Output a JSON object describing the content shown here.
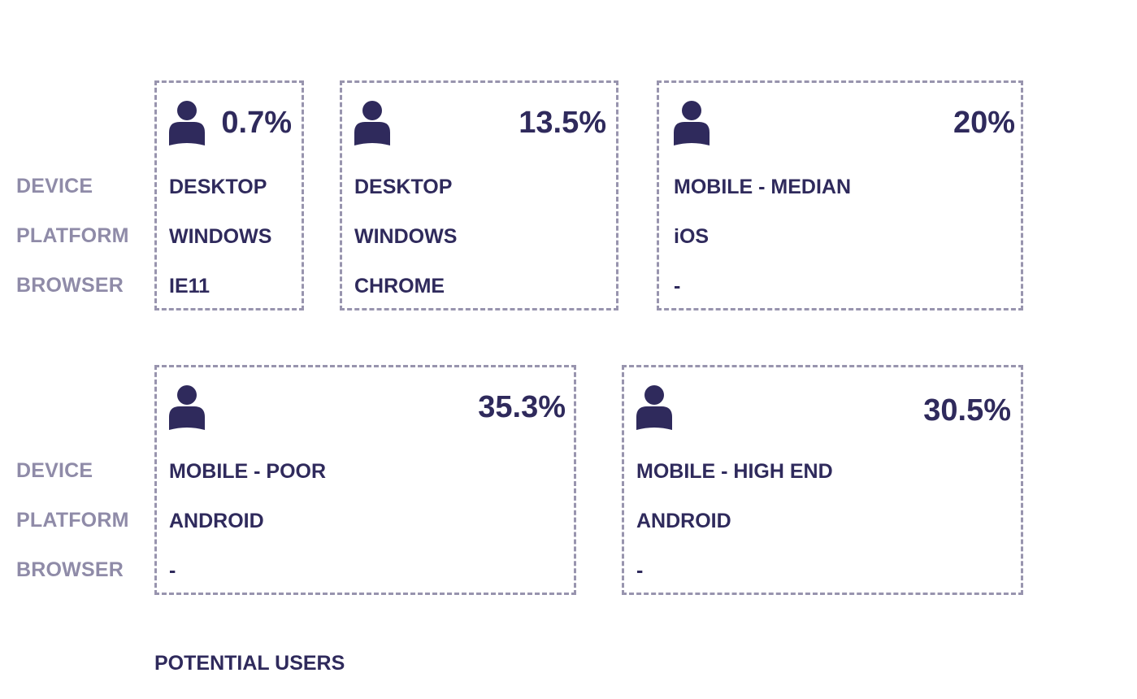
{
  "row_labels": {
    "device": "DEVICE",
    "platform": "PLATFORM",
    "browser": "BROWSER"
  },
  "segments": [
    {
      "percent": "0.7%",
      "device": "DESKTOP",
      "platform": "WINDOWS",
      "browser": "IE11"
    },
    {
      "percent": "13.5%",
      "device": "DESKTOP",
      "platform": "WINDOWS",
      "browser": "CHROME"
    },
    {
      "percent": "20%",
      "device": "MOBILE - MEDIAN",
      "platform": "iOS",
      "browser": "-"
    },
    {
      "percent": "35.3%",
      "device": "MOBILE - POOR",
      "platform": "ANDROID",
      "browser": "-"
    },
    {
      "percent": "30.5%",
      "device": "MOBILE - HIGH END",
      "platform": "ANDROID",
      "browser": "-"
    }
  ],
  "footer_label": "POTENTIAL USERS",
  "icon": "person-icon",
  "colors": {
    "primary": "#2f2a5c",
    "label": "#8f8ba8",
    "border": "#9894ae"
  }
}
